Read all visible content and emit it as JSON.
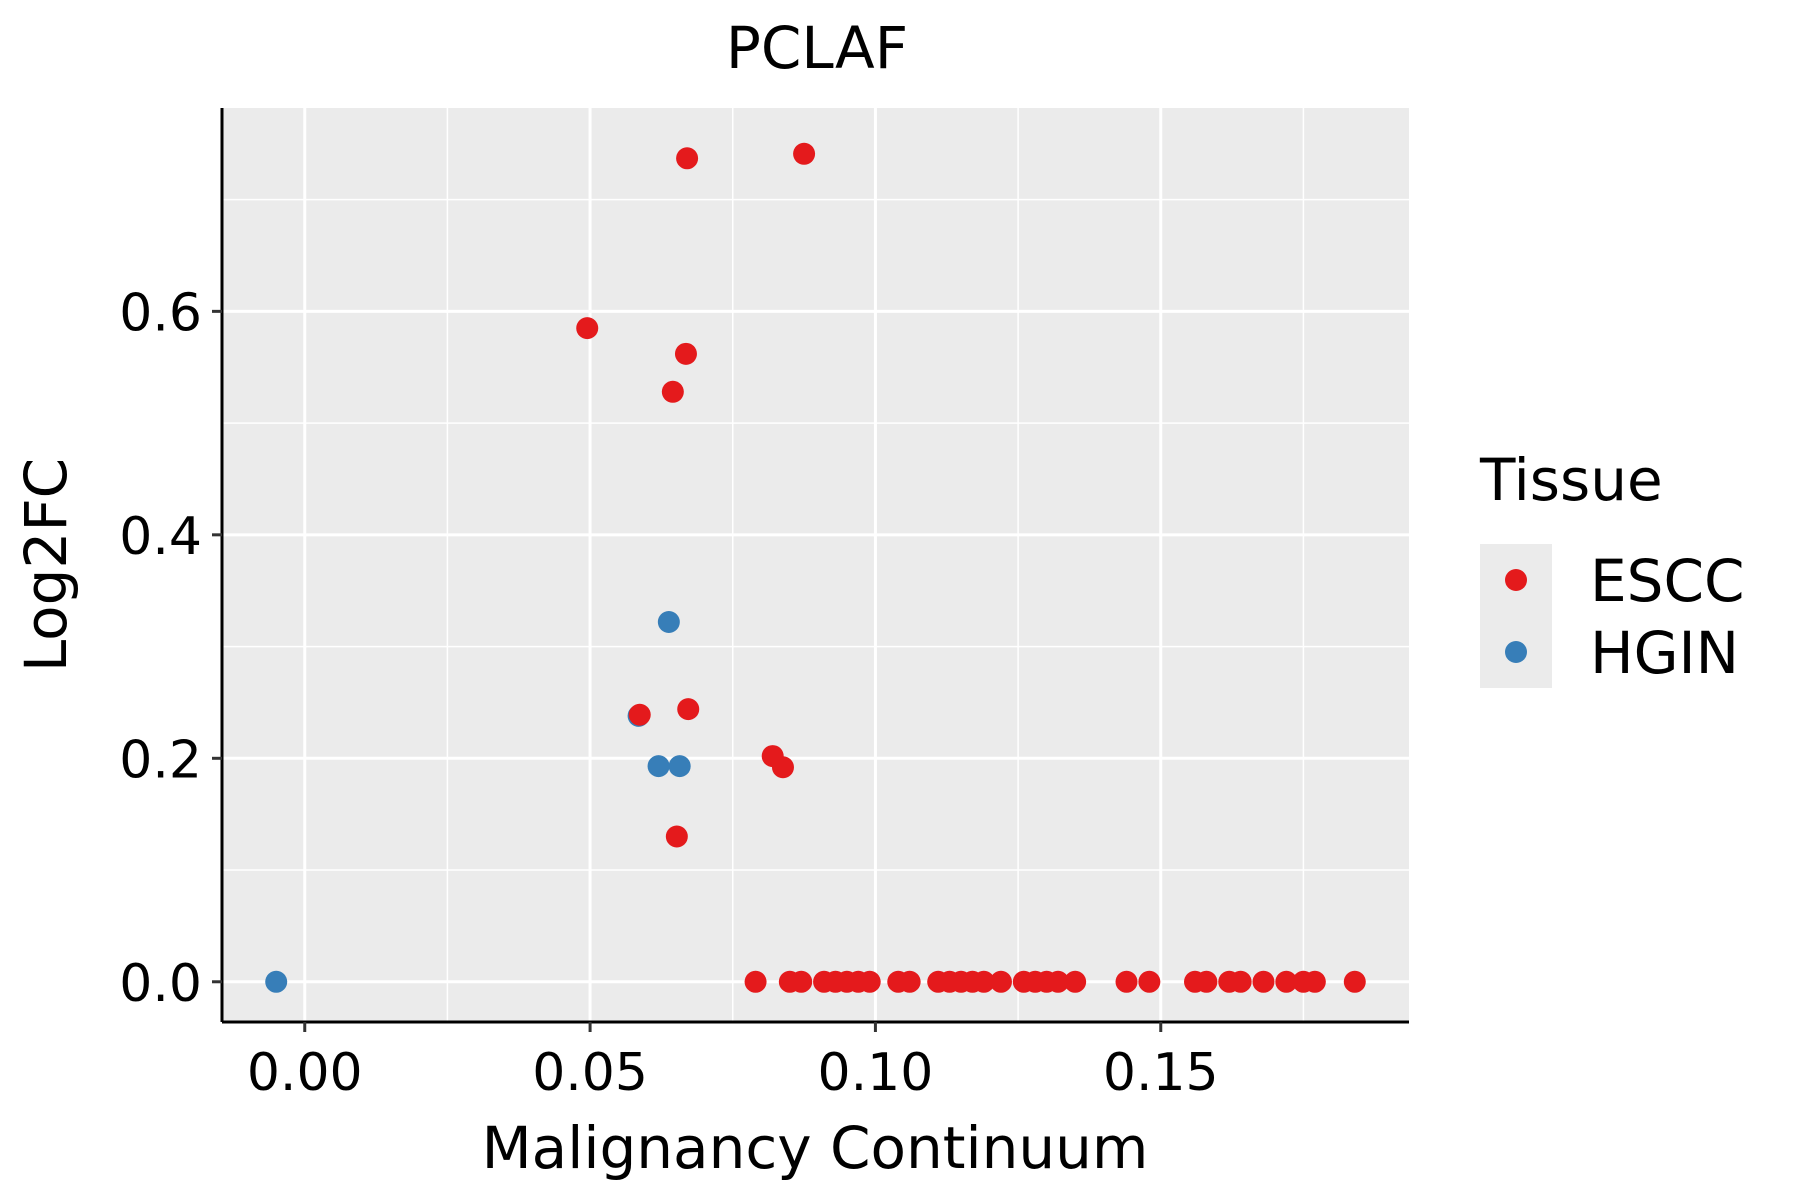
{
  "chart_data": {
    "type": "scatter",
    "title": "PCLAF",
    "xlabel": "Malignancy Continuum",
    "ylabel": "Log2FC",
    "xlim": [
      -0.0145,
      0.1935
    ],
    "ylim": [
      -0.036,
      0.782
    ],
    "x_ticks": [
      0.0,
      0.05,
      0.1,
      0.15
    ],
    "x_tick_labels": [
      "0.00",
      "0.05",
      "0.10",
      "0.15"
    ],
    "y_ticks": [
      0.0,
      0.2,
      0.4,
      0.6
    ],
    "y_tick_labels": [
      "0.0",
      "0.2",
      "0.4",
      "0.6"
    ],
    "x_minor_ticks": [
      0.025,
      0.075,
      0.125,
      0.175
    ],
    "y_minor_ticks": [
      0.1,
      0.3,
      0.5,
      0.7
    ],
    "grid": true,
    "background": "#EBEBEB",
    "legend": {
      "title": "Tissue",
      "position": "right",
      "entries": [
        {
          "label": "ESCC",
          "color": "#E41A1C"
        },
        {
          "label": "HGIN",
          "color": "#377EB8"
        }
      ]
    },
    "series": [
      {
        "name": "HGIN",
        "color": "#377EB8",
        "points": [
          [
            -0.005,
            0.0
          ],
          [
            0.0638,
            0.322
          ],
          [
            0.0585,
            0.238
          ],
          [
            0.062,
            0.193
          ],
          [
            0.0657,
            0.193
          ]
        ]
      },
      {
        "name": "ESCC",
        "color": "#E41A1C",
        "points": [
          [
            0.0875,
            0.741
          ],
          [
            0.067,
            0.737
          ],
          [
            0.0495,
            0.585
          ],
          [
            0.0668,
            0.562
          ],
          [
            0.0645,
            0.528
          ],
          [
            0.0587,
            0.239
          ],
          [
            0.0672,
            0.244
          ],
          [
            0.082,
            0.202
          ],
          [
            0.0838,
            0.192
          ],
          [
            0.0652,
            0.13
          ],
          [
            0.079,
            0.0
          ],
          [
            0.085,
            0.0
          ],
          [
            0.087,
            0.0
          ],
          [
            0.091,
            0.0
          ],
          [
            0.093,
            0.0
          ],
          [
            0.095,
            0.0
          ],
          [
            0.097,
            0.0
          ],
          [
            0.099,
            0.0
          ],
          [
            0.104,
            0.0
          ],
          [
            0.106,
            0.0
          ],
          [
            0.111,
            0.0
          ],
          [
            0.113,
            0.0
          ],
          [
            0.115,
            0.0
          ],
          [
            0.117,
            0.0
          ],
          [
            0.119,
            0.0
          ],
          [
            0.122,
            0.0
          ],
          [
            0.126,
            0.0
          ],
          [
            0.128,
            0.0
          ],
          [
            0.13,
            0.0
          ],
          [
            0.132,
            0.0
          ],
          [
            0.135,
            0.0
          ],
          [
            0.144,
            0.0
          ],
          [
            0.148,
            0.0
          ],
          [
            0.156,
            0.0
          ],
          [
            0.158,
            0.0
          ],
          [
            0.162,
            0.0
          ],
          [
            0.164,
            0.0
          ],
          [
            0.168,
            0.0
          ],
          [
            0.172,
            0.0
          ],
          [
            0.175,
            0.0
          ],
          [
            0.177,
            0.0
          ],
          [
            0.184,
            0.0
          ]
        ]
      }
    ]
  }
}
